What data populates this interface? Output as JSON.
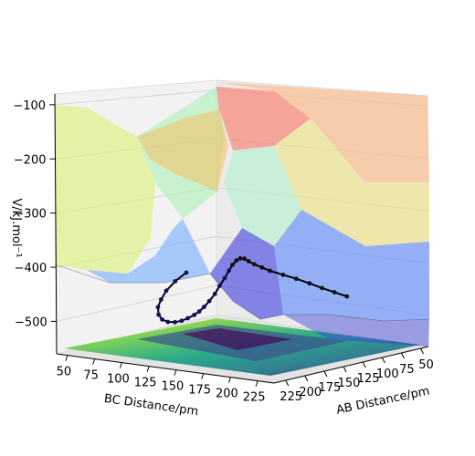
{
  "chart_data": {
    "type": "surface3d",
    "title": "",
    "zlabel": "V/kJ.mol⁻¹",
    "xlabel": "BC Distance/pm",
    "ylabel": "AB Distance/pm",
    "z_ticks": [
      "−100",
      "−200",
      "−300",
      "−400",
      "−500"
    ],
    "z_tick_values": [
      -100,
      -200,
      -300,
      -400,
      -500
    ],
    "x_ticks": [
      "50",
      "75",
      "100",
      "125",
      "150",
      "175",
      "200",
      "225"
    ],
    "x_tick_values": [
      50,
      75,
      100,
      125,
      150,
      175,
      200,
      225
    ],
    "y_ticks": [
      "50",
      "75",
      "100",
      "125",
      "150",
      "175",
      "200",
      "225"
    ],
    "y_tick_values": [
      50,
      75,
      100,
      125,
      150,
      175,
      200,
      225
    ],
    "xlim": [
      40,
      240
    ],
    "ylim": [
      40,
      240
    ],
    "zlim": [
      -560,
      -80
    ],
    "surface_colormap": "jet",
    "contour_colormap": "viridis",
    "trajectory": {
      "bc_pm": [
        240,
        225,
        210,
        195,
        180,
        165,
        150,
        140,
        130,
        122,
        116,
        110,
        105,
        100,
        96,
        92,
        88,
        85,
        82,
        80,
        79,
        78,
        77,
        77,
        78,
        80,
        84,
        90,
        98,
        108,
        120,
        134,
        150
      ],
      "ab_pm": [
        145,
        140,
        135,
        130,
        126,
        122,
        118,
        114,
        110,
        106,
        103,
        100,
        98,
        96,
        95,
        95,
        96,
        98,
        101,
        105,
        110,
        115,
        122,
        130,
        140,
        152,
        165,
        178,
        190,
        200,
        210,
        218,
        226
      ],
      "v_kjmol": [
        -432,
        -430,
        -428,
        -425,
        -422,
        -420,
        -418,
        -416,
        -414,
        -412,
        -410,
        -412,
        -418,
        -428,
        -440,
        -455,
        -470,
        -485,
        -498,
        -508,
        -515,
        -520,
        -524,
        -526,
        -525,
        -520,
        -510,
        -495,
        -475,
        -455,
        -432,
        -408,
        -385
      ]
    },
    "grid": true
  }
}
